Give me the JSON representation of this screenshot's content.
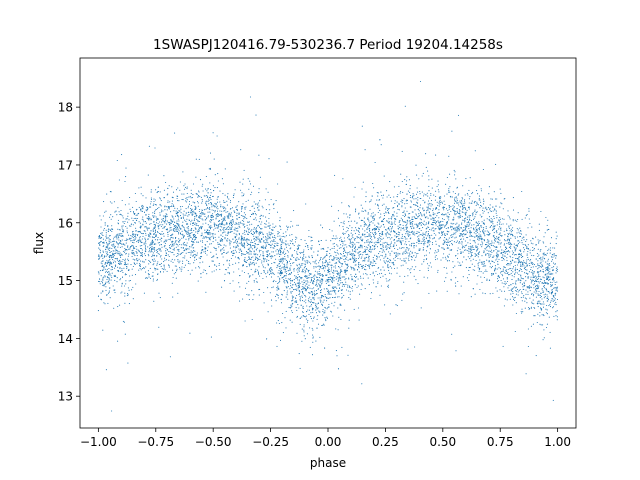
{
  "chart_data": {
    "type": "scatter",
    "title": "1SWASPJ120416.79-530236.7 Period 19204.14258s",
    "xlabel": "phase",
    "ylabel": "flux",
    "xlim": [
      -1.08,
      1.08
    ],
    "ylim": [
      12.45,
      18.85
    ],
    "x_ticks": [
      {
        "value": -1.0,
        "label": "−1.00"
      },
      {
        "value": -0.75,
        "label": "−0.75"
      },
      {
        "value": -0.5,
        "label": "−0.50"
      },
      {
        "value": -0.25,
        "label": "−0.25"
      },
      {
        "value": 0.0,
        "label": "0.00"
      },
      {
        "value": 0.25,
        "label": "0.25"
      },
      {
        "value": 0.5,
        "label": "0.50"
      },
      {
        "value": 0.75,
        "label": "0.75"
      },
      {
        "value": 1.0,
        "label": "1.00"
      }
    ],
    "y_ticks": [
      {
        "value": 13,
        "label": "13"
      },
      {
        "value": 14,
        "label": "14"
      },
      {
        "value": 15,
        "label": "15"
      },
      {
        "value": 16,
        "label": "16"
      },
      {
        "value": 17,
        "label": "17"
      },
      {
        "value": 18,
        "label": "18"
      }
    ],
    "grid": false,
    "legend": "none",
    "point_color": "#1f77b4",
    "series": [
      {
        "points": [
          [
            -1.0,
            15.3
          ],
          [
            -0.95,
            15.45
          ],
          [
            -0.9,
            15.55
          ],
          [
            -0.85,
            15.65
          ],
          [
            -0.8,
            15.72
          ],
          [
            -0.75,
            15.8
          ],
          [
            -0.7,
            15.85
          ],
          [
            -0.65,
            15.9
          ],
          [
            -0.6,
            15.92
          ],
          [
            -0.55,
            15.95
          ],
          [
            -0.5,
            15.95
          ],
          [
            -0.45,
            15.9
          ],
          [
            -0.4,
            15.82
          ],
          [
            -0.35,
            15.75
          ],
          [
            -0.3,
            15.65
          ],
          [
            -0.25,
            15.5
          ],
          [
            -0.2,
            15.3
          ],
          [
            -0.15,
            15.1
          ],
          [
            -0.1,
            14.95
          ],
          [
            -0.05,
            14.85
          ],
          [
            0.0,
            14.95
          ],
          [
            0.05,
            15.2
          ],
          [
            0.1,
            15.4
          ],
          [
            0.15,
            15.55
          ],
          [
            0.2,
            15.7
          ],
          [
            0.25,
            15.78
          ],
          [
            0.3,
            15.85
          ],
          [
            0.35,
            15.9
          ],
          [
            0.4,
            15.95
          ],
          [
            0.45,
            15.95
          ],
          [
            0.5,
            15.92
          ],
          [
            0.55,
            15.88
          ],
          [
            0.6,
            15.82
          ],
          [
            0.65,
            15.75
          ],
          [
            0.7,
            15.65
          ],
          [
            0.75,
            15.55
          ],
          [
            0.8,
            15.4
          ],
          [
            0.85,
            15.25
          ],
          [
            0.9,
            15.1
          ],
          [
            0.95,
            15.05
          ],
          [
            1.0,
            15.0
          ]
        ]
      }
    ]
  }
}
